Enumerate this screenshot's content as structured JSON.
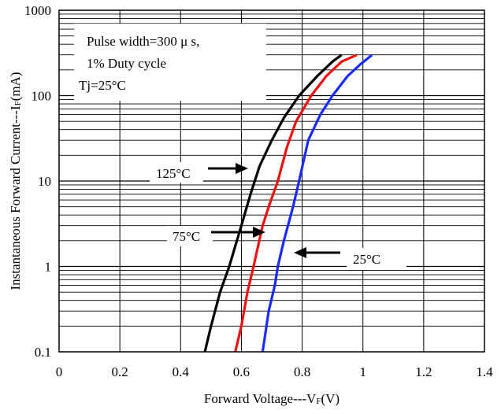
{
  "chart_data": {
    "type": "line",
    "x_axis": {
      "label_main": "Forward Voltage---V",
      "label_sub": "F",
      "label_tail": "(V)",
      "min": 0,
      "max": 1.4,
      "ticks": [
        0,
        0.2,
        0.4,
        0.6,
        0.8,
        1,
        1.2,
        1.4
      ],
      "tick_labels": [
        "0",
        "0.2",
        "0.4",
        "0.6",
        "0.8",
        "1",
        "1.2",
        "1.4"
      ]
    },
    "y_axis": {
      "label_main": "Instantaneous Forward Current---I",
      "label_sub": "F",
      "label_tail": "(mA)",
      "scale": "log",
      "min": 0.1,
      "max": 1000,
      "ticks": [
        0.1,
        1,
        10,
        100,
        1000
      ],
      "tick_labels": [
        "0.1",
        "1",
        "10",
        "100",
        "1000"
      ]
    },
    "grid": true,
    "info_box": {
      "lines": [
        "Pulse width=300 μ s,",
        "1% Duty cycle",
        "Tj=25°C"
      ]
    },
    "series": [
      {
        "name": "125°C",
        "color": "#000000",
        "points": [
          [
            0.48,
            0.1
          ],
          [
            0.5,
            0.2
          ],
          [
            0.53,
            0.5
          ],
          [
            0.56,
            1
          ],
          [
            0.6,
            3
          ],
          [
            0.63,
            7
          ],
          [
            0.66,
            15
          ],
          [
            0.7,
            30
          ],
          [
            0.74,
            55
          ],
          [
            0.79,
            100
          ],
          [
            0.85,
            170
          ],
          [
            0.9,
            250
          ],
          [
            0.93,
            300
          ]
        ]
      },
      {
        "name": "75°C",
        "color": "#ee1111",
        "points": [
          [
            0.58,
            0.1
          ],
          [
            0.6,
            0.2
          ],
          [
            0.62,
            0.5
          ],
          [
            0.64,
            1
          ],
          [
            0.67,
            3
          ],
          [
            0.69,
            5
          ],
          [
            0.72,
            10
          ],
          [
            0.75,
            25
          ],
          [
            0.78,
            50
          ],
          [
            0.83,
            100
          ],
          [
            0.88,
            170
          ],
          [
            0.93,
            250
          ],
          [
            0.98,
            300
          ]
        ]
      },
      {
        "name": "25°C",
        "color": "#1a2bff",
        "points": [
          [
            0.67,
            0.1
          ],
          [
            0.69,
            0.3
          ],
          [
            0.71,
            0.6
          ],
          [
            0.72,
            1
          ],
          [
            0.74,
            2
          ],
          [
            0.77,
            5
          ],
          [
            0.79,
            10
          ],
          [
            0.82,
            30
          ],
          [
            0.86,
            60
          ],
          [
            0.9,
            100
          ],
          [
            0.95,
            170
          ],
          [
            0.99,
            230
          ],
          [
            1.03,
            300
          ]
        ]
      }
    ],
    "annotations": [
      {
        "text": "125°C",
        "arrow_to": [
          0.62,
          15
        ]
      },
      {
        "text": "75°C",
        "arrow_to": [
          0.67,
          2.7
        ]
      },
      {
        "text": "25°C",
        "arrow_to": [
          0.76,
          1.4
        ]
      }
    ]
  }
}
